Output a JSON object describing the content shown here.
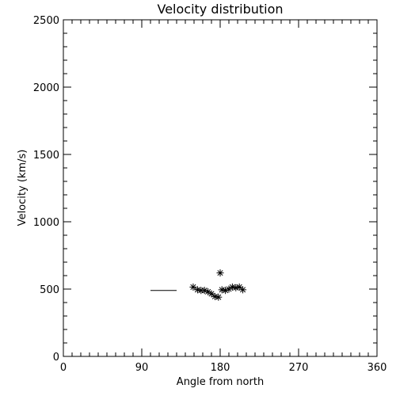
{
  "chart_data": {
    "type": "scatter",
    "title": "Velocity distribution",
    "xlabel": "Angle from north",
    "ylabel": "Velocity (km/s)",
    "xlim": [
      0,
      360
    ],
    "ylim": [
      0,
      2500
    ],
    "xticks": [
      0,
      90,
      180,
      270,
      360
    ],
    "yticks": [
      0,
      500,
      1000,
      1500,
      2000,
      2500
    ],
    "grid": false,
    "marker": "asterisk",
    "points": [
      {
        "x": 149,
        "y": 515
      },
      {
        "x": 154,
        "y": 495
      },
      {
        "x": 158,
        "y": 490
      },
      {
        "x": 162,
        "y": 490
      },
      {
        "x": 166,
        "y": 480
      },
      {
        "x": 170,
        "y": 465
      },
      {
        "x": 174,
        "y": 445
      },
      {
        "x": 178,
        "y": 440
      },
      {
        "x": 180,
        "y": 620
      },
      {
        "x": 182,
        "y": 495
      },
      {
        "x": 186,
        "y": 490
      },
      {
        "x": 190,
        "y": 500
      },
      {
        "x": 194,
        "y": 515
      },
      {
        "x": 198,
        "y": 510
      },
      {
        "x": 202,
        "y": 515
      },
      {
        "x": 206,
        "y": 495
      }
    ],
    "reference_line": {
      "x_start": 100,
      "x_end": 130,
      "y": 490
    }
  }
}
